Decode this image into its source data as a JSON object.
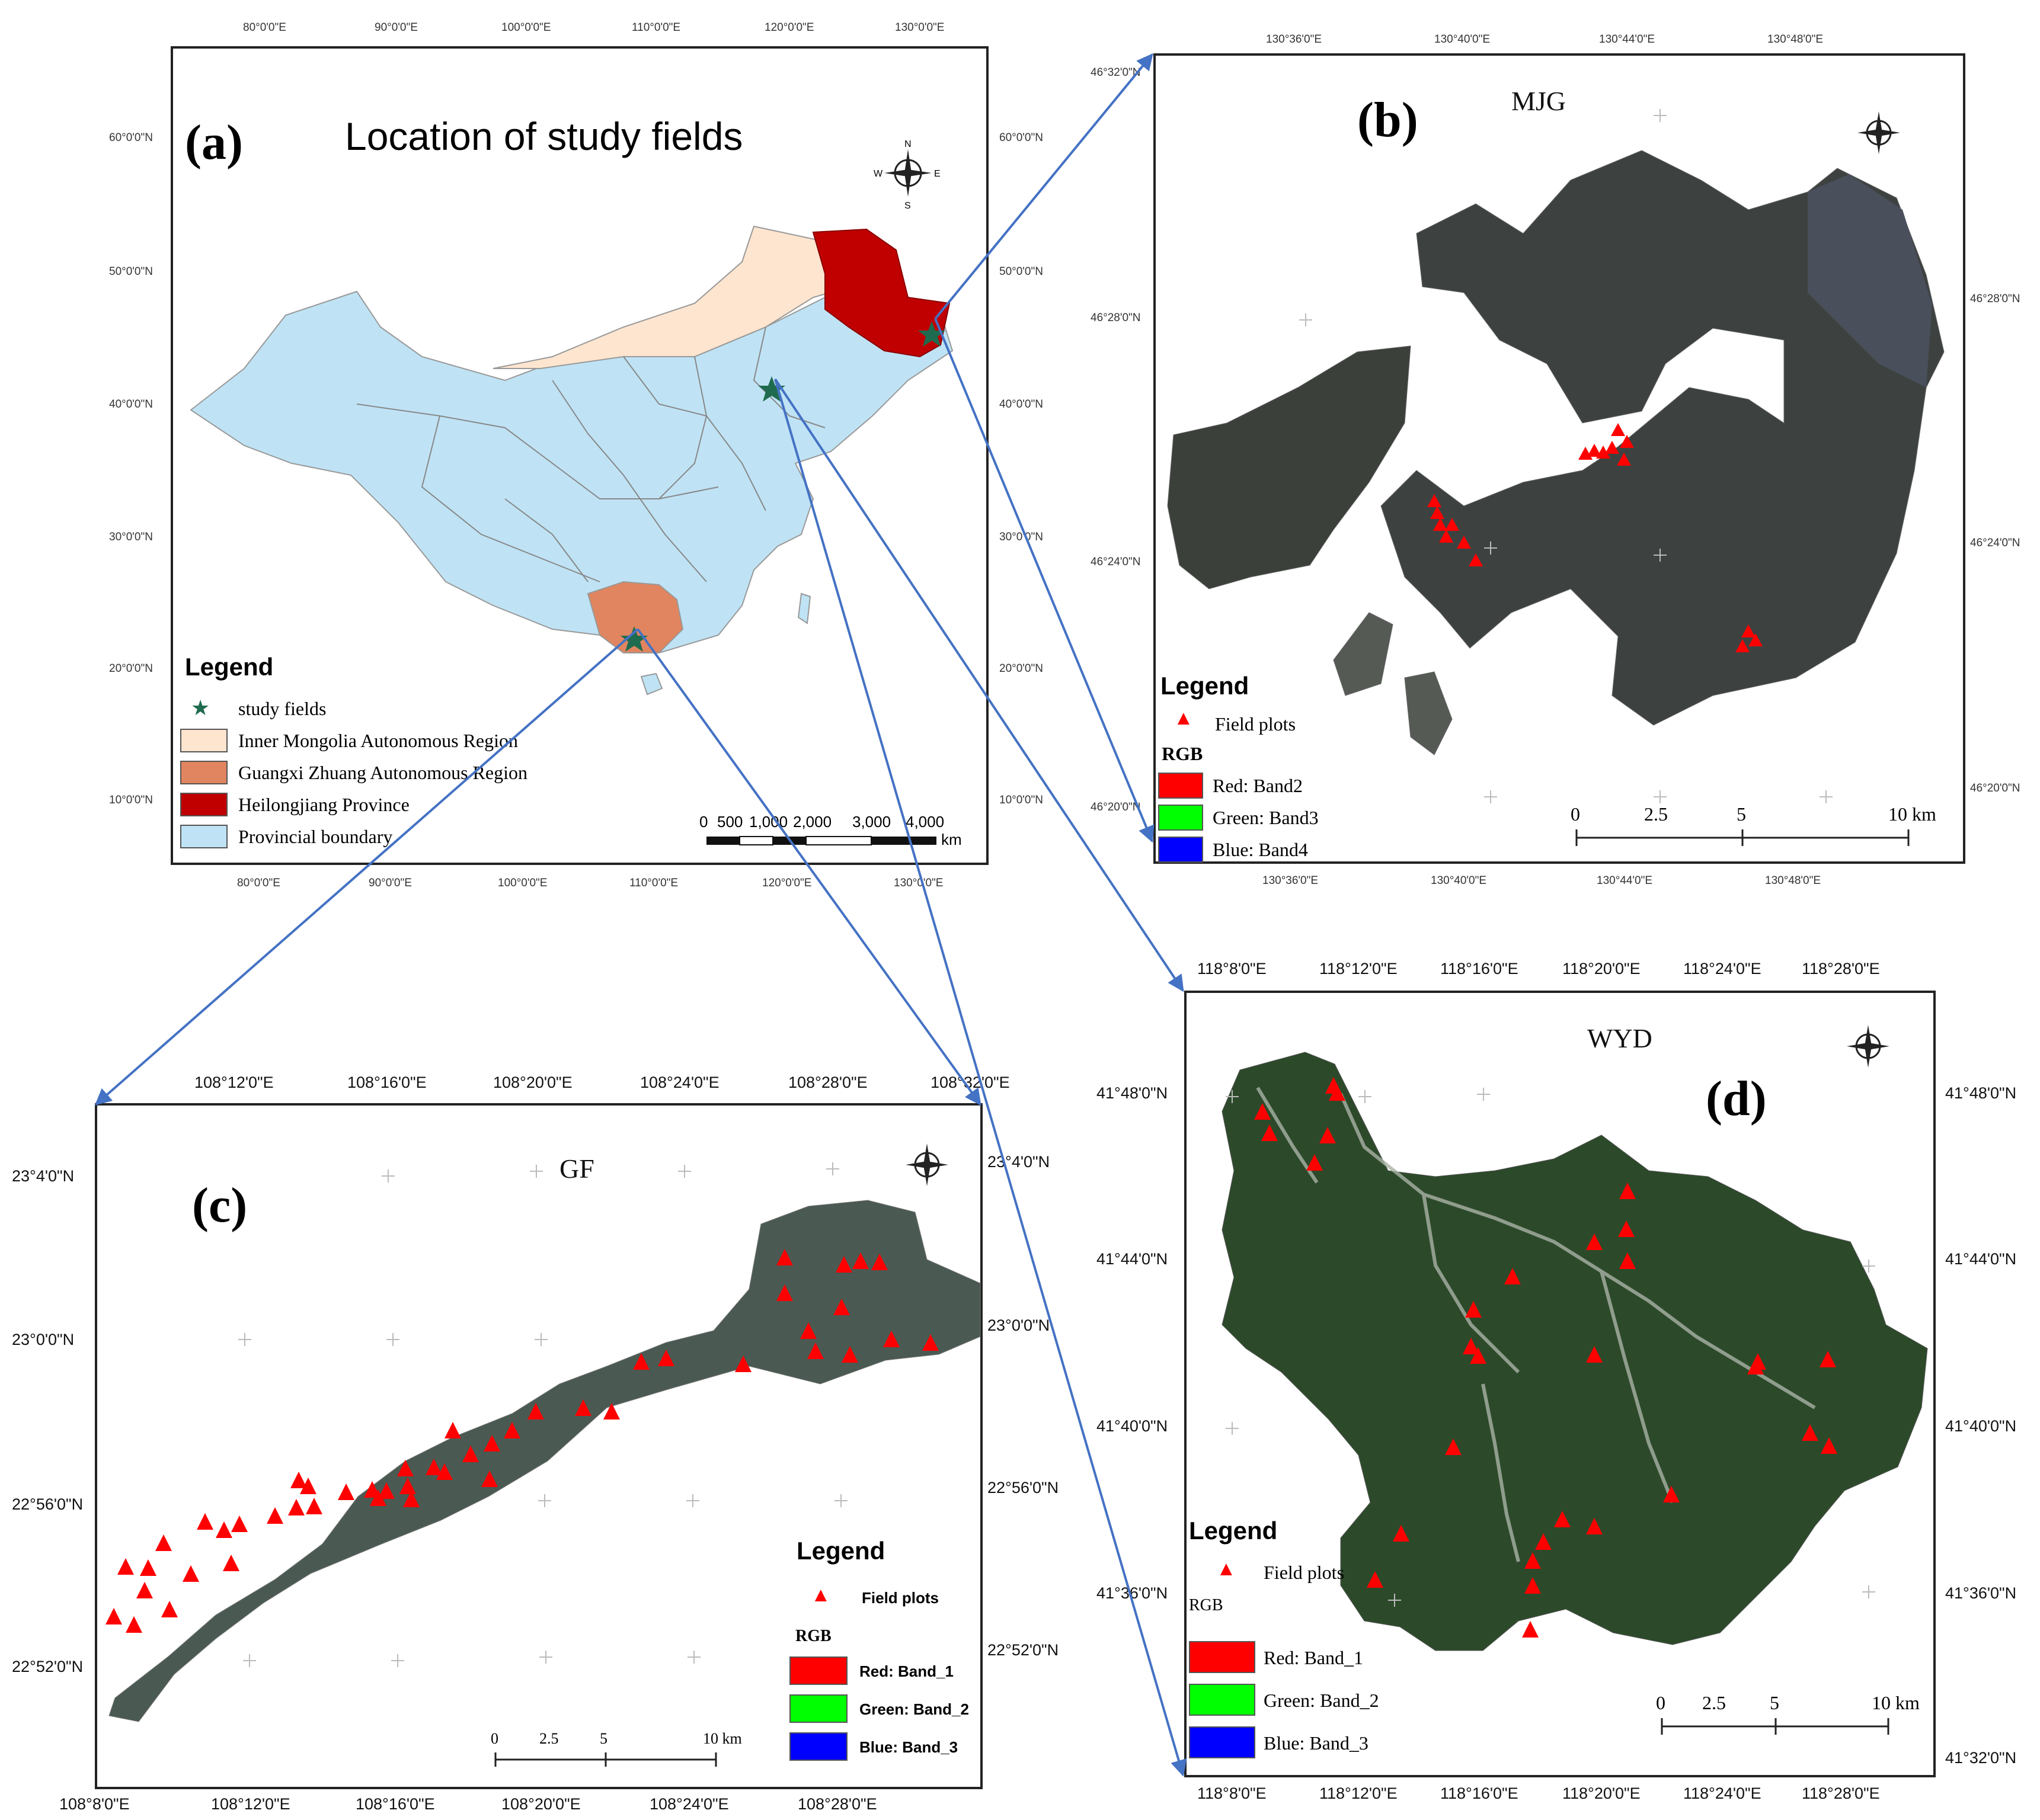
{
  "panel_a": {
    "label": "(a)",
    "title": "Location of study fields",
    "top_ticks": [
      "80°0'0\"E",
      "90°0'0\"E",
      "100°0'0\"E",
      "110°0'0\"E",
      "120°0'0\"E",
      "130°0'0\"E"
    ],
    "bottom_ticks": [
      "80°0'0\"E",
      "90°0'0\"E",
      "100°0'0\"E",
      "110°0'0\"E",
      "120°0'0\"E",
      "130°0'0\"E"
    ],
    "left_ticks": [
      "60°0'0\"N",
      "50°0'0\"N",
      "40°0'0\"N",
      "30°0'0\"N",
      "20°0'0\"N",
      "10°0'0\"N"
    ],
    "right_ticks": [
      "60°0'0\"N",
      "50°0'0\"N",
      "40°0'0\"N",
      "30°0'0\"N",
      "20°0'0\"N",
      "10°0'0\"N"
    ],
    "legend": {
      "title": "Legend",
      "items": [
        {
          "label": "study fields",
          "symbol": "star",
          "color": "#1f6b4f"
        },
        {
          "label": "Inner Mongolia Autonomous Region",
          "symbol": "box",
          "color": "#fde5cf"
        },
        {
          "label": "Guangxi Zhuang Autonomous Region",
          "symbol": "box",
          "color": "#e0855f"
        },
        {
          "label": "Heilongjiang Province",
          "symbol": "box",
          "color": "#c00000"
        },
        {
          "label": "Provincial boundary",
          "symbol": "box",
          "color": "#bfe3f5"
        }
      ]
    },
    "scale": {
      "labels": [
        "0",
        "500",
        "1,000",
        "2,000",
        "3,000",
        "4,000"
      ],
      "unit": "km"
    }
  },
  "panel_b": {
    "label": "(b)",
    "title": "MJG",
    "top_ticks": [
      "130°36'0\"E",
      "130°40'0\"E",
      "130°44'0\"E",
      "130°48'0\"E"
    ],
    "bottom_ticks": [
      "130°36'0\"E",
      "130°40'0\"E",
      "130°44'0\"E",
      "130°48'0\"E"
    ],
    "left_ticks": [
      "46°32'0\"N",
      "46°28'0\"N",
      "46°24'0\"N",
      "46°20'0\"N"
    ],
    "right_ticks": [
      "46°28'0\"N",
      "46°24'0\"N",
      "46°20'0\"N"
    ],
    "legend": {
      "title": "Legend",
      "plots_label": "Field plots",
      "rgb_title": "RGB",
      "bands": [
        {
          "label": "Red:   Band2",
          "color": "#ff0000"
        },
        {
          "label": "Green: Band3",
          "color": "#00ff00"
        },
        {
          "label": "Blue:  Band4",
          "color": "#0000ff"
        }
      ]
    },
    "scale": {
      "labels": [
        "0",
        "2.5",
        "5",
        "10 km"
      ]
    }
  },
  "panel_c": {
    "label": "(c)",
    "title": "GF",
    "top_ticks": [
      "108°12'0\"E",
      "108°16'0\"E",
      "108°20'0\"E",
      "108°24'0\"E",
      "108°28'0\"E",
      "108°32'0\"E"
    ],
    "bottom_ticks": [
      "108°8'0\"E",
      "108°12'0\"E",
      "108°16'0\"E",
      "108°20'0\"E",
      "108°24'0\"E",
      "108°28'0\"E"
    ],
    "left_ticks": [
      "23°4'0\"N",
      "23°0'0\"N",
      "22°56'0\"N",
      "22°52'0\"N"
    ],
    "right_ticks": [
      "23°4'0\"N",
      "23°0'0\"N",
      "22°56'0\"N",
      "22°52'0\"N"
    ],
    "legend": {
      "title": "Legend",
      "plots_label": "Field plots",
      "rgb_title": "RGB",
      "bands": [
        {
          "label": "Red: Band_1",
          "color": "#ff0000"
        },
        {
          "label": "Green: Band_2",
          "color": "#00ff00"
        },
        {
          "label": "Blue: Band_3",
          "color": "#0000ff"
        }
      ]
    },
    "scale": {
      "labels": [
        "0",
        "2.5",
        "5",
        "10 km"
      ]
    }
  },
  "panel_d": {
    "label": "(d)",
    "title": "WYD",
    "top_ticks": [
      "118°8'0\"E",
      "118°12'0\"E",
      "118°16'0\"E",
      "118°20'0\"E",
      "118°24'0\"E",
      "118°28'0\"E"
    ],
    "bottom_ticks": [
      "118°8'0\"E",
      "118°12'0\"E",
      "118°16'0\"E",
      "118°20'0\"E",
      "118°24'0\"E",
      "118°28'0\"E"
    ],
    "left_ticks": [
      "41°48'0\"N",
      "41°44'0\"N",
      "41°40'0\"N",
      "41°36'0\"N"
    ],
    "right_ticks": [
      "41°48'0\"N",
      "41°44'0\"N",
      "41°40'0\"N",
      "41°36'0\"N",
      "41°32'0\"N"
    ],
    "legend": {
      "title": "Legend",
      "plots_label": "Field plots",
      "rgb_title": "RGB",
      "bands": [
        {
          "label": "Red:   Band_1",
          "color": "#ff0000"
        },
        {
          "label": "Green: Band_2",
          "color": "#00ff00"
        },
        {
          "label": "Blue:  Band_3",
          "color": "#0000ff"
        }
      ]
    },
    "scale": {
      "labels": [
        "0",
        "2.5",
        "5",
        "10 km"
      ]
    }
  },
  "colors": {
    "arrow": "#4472c4",
    "plot": "#ff0000",
    "imagery_dark": "#3a3f3a",
    "forest": "#2c4a2a"
  }
}
